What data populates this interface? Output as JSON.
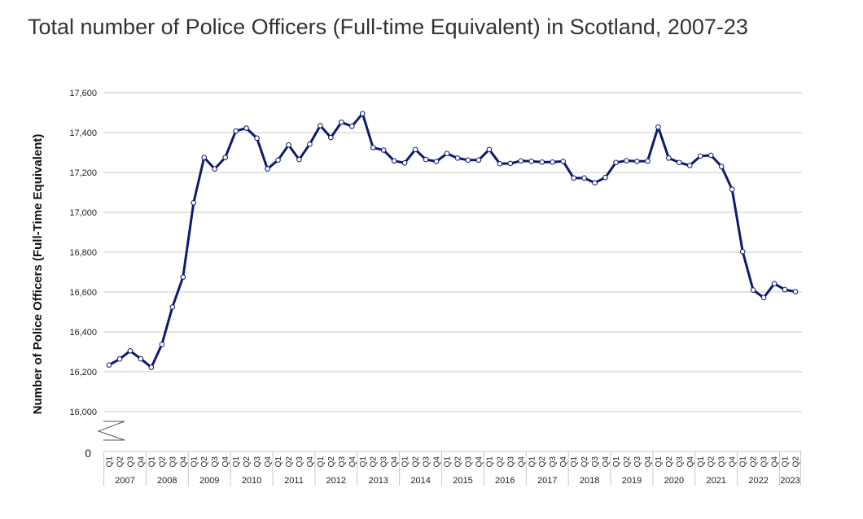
{
  "title": "Total number of Police Officers (Full-time Equivalent) in Scotland, 2007-23",
  "chart_data": {
    "type": "line",
    "title": "Total number of Police Officers (Full-time Equivalent) in Scotland, 2007-23",
    "ylabel": "Number of Police Officers (Full-Time Equivalent)",
    "xlabel": "",
    "ylim": [
      16000,
      17600
    ],
    "y_ticks": [
      "16,000",
      "16,200",
      "16,400",
      "16,600",
      "16,800",
      "17,000",
      "17,200",
      "17,400",
      "17,600"
    ],
    "y_zero_label": "0",
    "axis_break": true,
    "grid": true,
    "line_color": "#0d1a6e",
    "marker_fill": "#ffffff",
    "year_labels": [
      "2007",
      "2008",
      "2009",
      "2010",
      "2011",
      "2012",
      "2013",
      "2014",
      "2015",
      "2016",
      "2017",
      "2018",
      "2019",
      "2020",
      "2021",
      "2022",
      "2023"
    ],
    "quarter_labels": [
      "Q1",
      "Q2",
      "Q3",
      "Q4",
      "Q1",
      "Q2",
      "Q3",
      "Q4",
      "Q1",
      "Q2",
      "Q3",
      "Q4",
      "Q1",
      "Q2",
      "Q3",
      "Q4",
      "Q1",
      "Q2",
      "Q3",
      "Q4",
      "Q1",
      "Q2",
      "Q3",
      "Q4",
      "Q1",
      "Q2",
      "Q3",
      "Q4",
      "Q1",
      "Q2",
      "Q3",
      "Q4",
      "Q1",
      "Q2",
      "Q3",
      "Q4",
      "Q1",
      "Q2",
      "Q3",
      "Q4",
      "Q1",
      "Q2",
      "Q3",
      "Q4",
      "Q1",
      "Q2",
      "Q3",
      "Q4",
      "Q1",
      "Q2",
      "Q3",
      "Q4",
      "Q1",
      "Q2",
      "Q3",
      "Q4",
      "Q1",
      "Q2",
      "Q3",
      "Q4",
      "Q1",
      "Q2",
      "Q3",
      "Q4",
      "Q1",
      "Q2"
    ],
    "series": [
      {
        "values": [
          16234,
          16264,
          16305,
          16265,
          16222,
          16337,
          16525,
          16675,
          17048,
          17275,
          17218,
          17275,
          17408,
          17422,
          17372,
          17218,
          17262,
          17338,
          17265,
          17342,
          17435,
          17375,
          17452,
          17432,
          17495,
          17325,
          17312,
          17258,
          17248,
          17315,
          17265,
          17255,
          17295,
          17272,
          17262,
          17262,
          17315,
          17244,
          17245,
          17258,
          17256,
          17252,
          17252,
          17256,
          17172,
          17172,
          17148,
          17175,
          17250,
          17259,
          17256,
          17257,
          17428,
          17272,
          17250,
          17235,
          17282,
          17286,
          17230,
          17115,
          16803,
          16610,
          16572,
          16642,
          16612,
          16602
        ]
      }
    ]
  }
}
